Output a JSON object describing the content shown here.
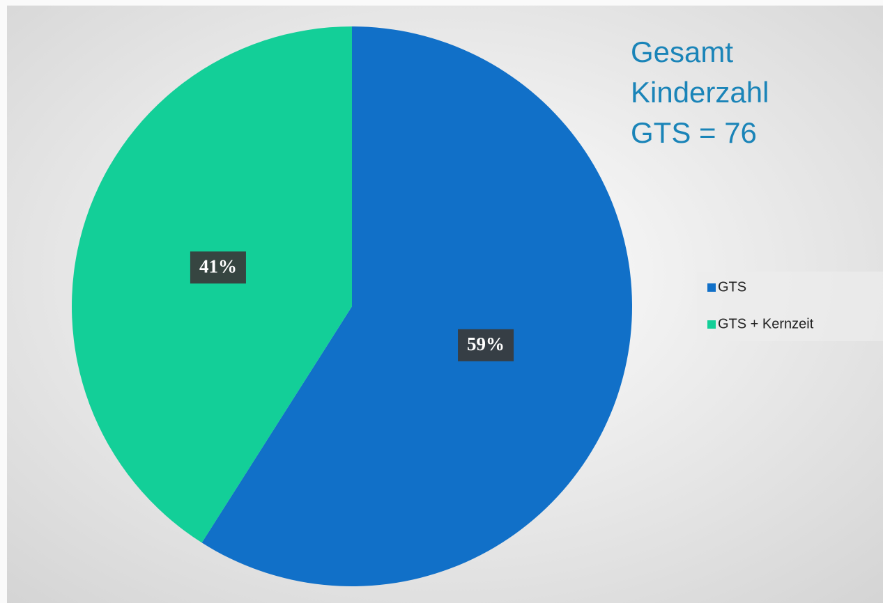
{
  "chart_data": {
    "type": "pie",
    "title": [
      "Gesamt",
      "Kinderzahl",
      "GTS = 76"
    ],
    "categories": [
      "GTS",
      "GTS + Kernzeit"
    ],
    "values": [
      59,
      41
    ],
    "value_labels": [
      "59%",
      "41%"
    ],
    "colors": [
      "#1170c8",
      "#13cf98"
    ],
    "legend": "right"
  }
}
